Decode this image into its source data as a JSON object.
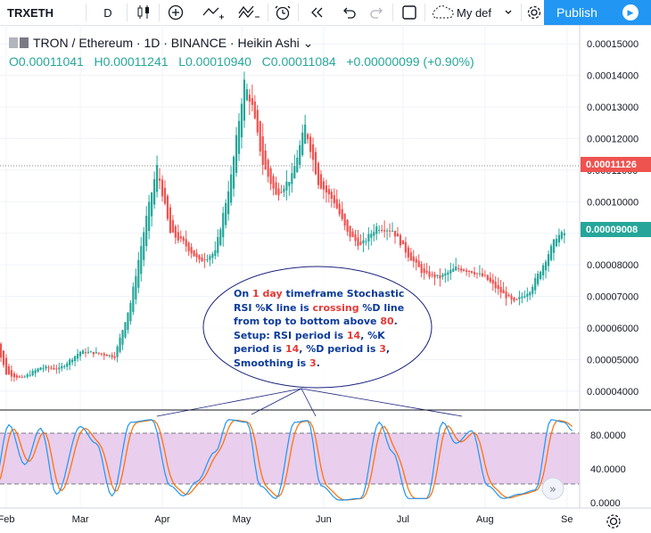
{
  "toolbar": {
    "symbol": "TRXETH",
    "interval": "D",
    "layout_name": "My def",
    "publish_label": "Publish",
    "icons": [
      "candles-icon",
      "indicators-icon",
      "draw-line-icon",
      "compare-icon",
      "alert-icon",
      "replay-icon",
      "undo-icon",
      "redo-icon",
      "fullscreen-icon",
      "cloud-icon",
      "gear-icon",
      "play-icon"
    ]
  },
  "legend": {
    "title": "TRON / Ethereum · 1D · BINANCE · Heikin Ashi",
    "open": "O0.00011041",
    "high": "H0.00011241",
    "low": "L0.00010940",
    "close": "C0.00011084",
    "change": "+0.00000099 (+0.90%)"
  },
  "price_axis": [
    "0.00015000",
    "0.00014000",
    "0.00013000",
    "0.00012000",
    "0.00011000",
    "0.00010000",
    "0.00009000",
    "0.00008000",
    "0.00007000",
    "0.00006000",
    "0.00005000",
    "0.00004000"
  ],
  "price_labels": {
    "crosshair": "0.00011126",
    "crosshair_color": "#ef5350",
    "last": "0.00009008",
    "last_color": "#26a69a"
  },
  "stoch_axis": [
    "80.0000",
    "40.0000",
    "0.0000"
  ],
  "time_axis": [
    "Feb",
    "Mar",
    "Apr",
    "May",
    "Jun",
    "Jul",
    "Aug",
    "Se"
  ],
  "colors": {
    "up": "#26a69a",
    "down": "#ef5350",
    "k_line": "#2196f3",
    "d_line": "#ff6d00",
    "band": "#e1bee7",
    "annotation": "#1a237e"
  },
  "annotation": {
    "parts": [
      {
        "text": "On ",
        "red": false
      },
      {
        "text": "1 day",
        "red": true
      },
      {
        "text": " timeframe Stochastic RSI %K line is ",
        "red": false
      },
      {
        "text": "crossing",
        "red": true
      },
      {
        "text": " %D line from top to bottom above ",
        "red": false
      },
      {
        "text": "80",
        "red": true
      },
      {
        "text": ". Setup: RSI period is ",
        "red": false
      },
      {
        "text": "14",
        "red": true
      },
      {
        "text": ", %K period is ",
        "red": false
      },
      {
        "text": "14",
        "red": true
      },
      {
        "text": ", %D period is ",
        "red": false
      },
      {
        "text": "3",
        "red": true
      },
      {
        "text": ", Smoothing is ",
        "red": false
      },
      {
        "text": "3",
        "red": true
      },
      {
        "text": ".",
        "red": false
      }
    ]
  },
  "chart_data": {
    "type": "candlestick",
    "style": "Heikin Ashi",
    "symbol": "TRON / Ethereum",
    "interval": "1D",
    "exchange": "BINANCE",
    "ylim": [
      3.4e-05,
      0.000156
    ],
    "close_trend": [
      [
        "Jan-27",
        5.85e-05
      ],
      [
        "Feb-01",
        4.55e-05
      ],
      [
        "Feb-07",
        4.4e-05
      ],
      [
        "Feb-14",
        4.75e-05
      ],
      [
        "Feb-21",
        4.7e-05
      ],
      [
        "Mar-01",
        5.25e-05
      ],
      [
        "Mar-07",
        5.2e-05
      ],
      [
        "Mar-14",
        5.1e-05
      ],
      [
        "Mar-20",
        6.8e-05
      ],
      [
        "Mar-26",
        9.5e-05
      ],
      [
        "Mar-30",
        0.000111
      ],
      [
        "Apr-04",
        9e-05
      ],
      [
        "Apr-09",
        8.7e-05
      ],
      [
        "Apr-15",
        8.1e-05
      ],
      [
        "Apr-21",
        8.4e-05
      ],
      [
        "Apr-27",
        0.000108
      ],
      [
        "May-02",
        0.000138
      ],
      [
        "May-05",
        0.00013
      ],
      [
        "May-09",
        0.000112
      ],
      [
        "May-14",
        0.000102
      ],
      [
        "May-20",
        0.000108
      ],
      [
        "May-25",
        0.000124
      ],
      [
        "May-30",
        0.000106
      ],
      [
        "Jun-05",
        0.0001
      ],
      [
        "Jun-10",
        9e-05
      ],
      [
        "Jun-15",
        8.6e-05
      ],
      [
        "Jun-21",
        9.2e-05
      ],
      [
        "Jun-27",
        9.1e-05
      ],
      [
        "Jul-03",
        8.3e-05
      ],
      [
        "Jul-09",
        7.7e-05
      ],
      [
        "Jul-15",
        7.6e-05
      ],
      [
        "Jul-21",
        7.9e-05
      ],
      [
        "Jul-27",
        7.8e-05
      ],
      [
        "Aug-01",
        7.6e-05
      ],
      [
        "Aug-06",
        7.2e-05
      ],
      [
        "Aug-12",
        6.8e-05
      ],
      [
        "Aug-18",
        7.2e-05
      ],
      [
        "Aug-23",
        8e-05
      ],
      [
        "Aug-28",
        8.9e-05
      ],
      [
        "Aug-31",
        9e-05
      ]
    ],
    "stoch_rsi": {
      "k_label": "%K",
      "d_label": "%D",
      "upper": 80,
      "lower": 20,
      "ylim": [
        0,
        100
      ],
      "k": [
        [
          "Jan-27",
          15
        ],
        [
          "Feb-02",
          92
        ],
        [
          "Feb-08",
          45
        ],
        [
          "Feb-14",
          88
        ],
        [
          "Feb-20",
          10
        ],
        [
          "Mar-01",
          90
        ],
        [
          "Mar-07",
          70
        ],
        [
          "Mar-13",
          8
        ],
        [
          "Mar-20",
          95
        ],
        [
          "Mar-28",
          98
        ],
        [
          "Apr-04",
          20
        ],
        [
          "Apr-09",
          8
        ],
        [
          "Apr-14",
          25
        ],
        [
          "Apr-21",
          60
        ],
        [
          "Apr-26",
          98
        ],
        [
          "May-03",
          95
        ],
        [
          "May-08",
          20
        ],
        [
          "May-14",
          5
        ],
        [
          "May-21",
          95
        ],
        [
          "May-26",
          97
        ],
        [
          "May-31",
          20
        ],
        [
          "Jun-07",
          3
        ],
        [
          "Jun-15",
          5
        ],
        [
          "Jun-22",
          95
        ],
        [
          "Jun-27",
          60
        ],
        [
          "Jul-03",
          5
        ],
        [
          "Jul-10",
          5
        ],
        [
          "Jul-16",
          95
        ],
        [
          "Jul-21",
          70
        ],
        [
          "Jul-27",
          85
        ],
        [
          "Aug-02",
          20
        ],
        [
          "Aug-08",
          5
        ],
        [
          "Aug-14",
          10
        ],
        [
          "Aug-20",
          15
        ],
        [
          "Aug-26",
          98
        ],
        [
          "Aug-31",
          95
        ],
        [
          "Sep-03",
          85
        ]
      ]
    }
  }
}
